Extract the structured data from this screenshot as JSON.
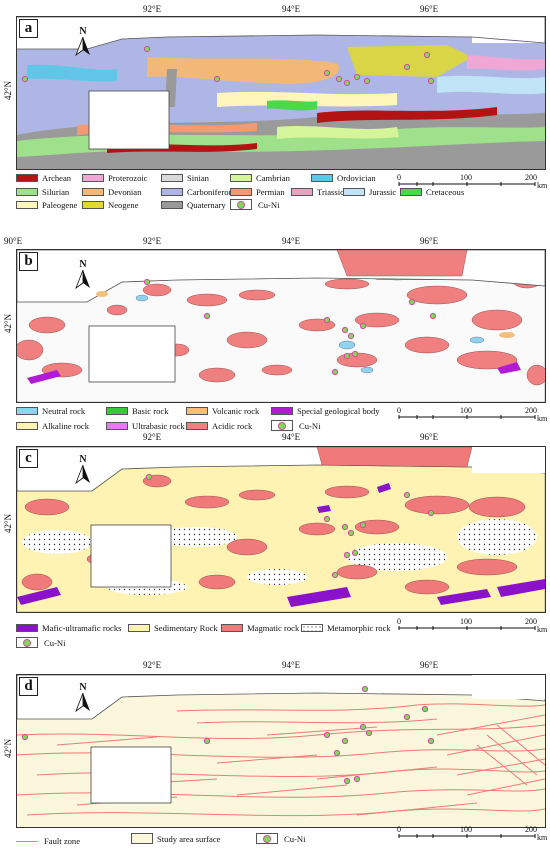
{
  "coordinates": {
    "lon_92": "92°E",
    "lon_94": "94°E",
    "lon_96": "96°E",
    "lon_90": "90°E",
    "lat_42": "42°N"
  },
  "north_label": "N",
  "scale": {
    "zero": "0",
    "mid": "100",
    "max": "200",
    "unit": "km"
  },
  "panels": {
    "a": {
      "label": "a",
      "legend": [
        {
          "label": "Archean",
          "color": "#b31313"
        },
        {
          "label": "Proterozoic",
          "color": "#f0a7d6"
        },
        {
          "label": "Sinian",
          "color": "#d9d9d9"
        },
        {
          "label": "Cambrian",
          "color": "#d5f59a"
        },
        {
          "label": "Ordovician",
          "color": "#61c5e8"
        },
        {
          "label": "Silurian",
          "color": "#9fe08a"
        },
        {
          "label": "Devonian",
          "color": "#f2b878"
        },
        {
          "label": "Carboniferous",
          "color": "#aeb6e6"
        },
        {
          "label": "Permian",
          "color": "#f39a73"
        },
        {
          "label": "Triassic",
          "color": "#e6a4c1"
        },
        {
          "label": "Jurassic",
          "color": "#bfe4f6"
        },
        {
          "label": "Cretaceous",
          "color": "#4cd84c"
        },
        {
          "label": "Paleogene",
          "color": "#fff7ba"
        },
        {
          "label": "Neogene",
          "color": "#e2da2a"
        },
        {
          "label": "Quaternary",
          "color": "#9a9a9a"
        }
      ],
      "cuni": "Cu-Ni"
    },
    "b": {
      "label": "b",
      "legend": [
        {
          "label": "Neutral rock",
          "color": "#8fd3ee"
        },
        {
          "label": "Basic rock",
          "color": "#33cc33"
        },
        {
          "label": "Volcanic rock",
          "color": "#f2c07a"
        },
        {
          "label": "Special geological body",
          "color": "#b21ad6"
        },
        {
          "label": "Alkaline rock",
          "color": "#fff4b8"
        },
        {
          "label": "Ultrabasic rock",
          "color": "#e07fe8"
        },
        {
          "label": "Acidic rock",
          "color": "#f08080"
        }
      ],
      "cuni": "Cu-Ni"
    },
    "c": {
      "label": "c",
      "legend": [
        {
          "label": "Mafic-ultramafic rocks",
          "color": "#8a12c9"
        },
        {
          "label": "Sedimentary Rock",
          "color": "#fff3b3"
        },
        {
          "label": "Magmatic rock",
          "color": "#f07a7a"
        },
        {
          "label": "Metamorphic rock",
          "color": "#ffffff"
        }
      ],
      "cuni": "Cu-Ni"
    },
    "d": {
      "label": "d",
      "legend": [
        {
          "label": "Fault zone",
          "color": "#f07a7a"
        },
        {
          "label": "Study area surface",
          "color": "#fbf7dc"
        }
      ],
      "cuni": "Cu-Ni"
    }
  }
}
